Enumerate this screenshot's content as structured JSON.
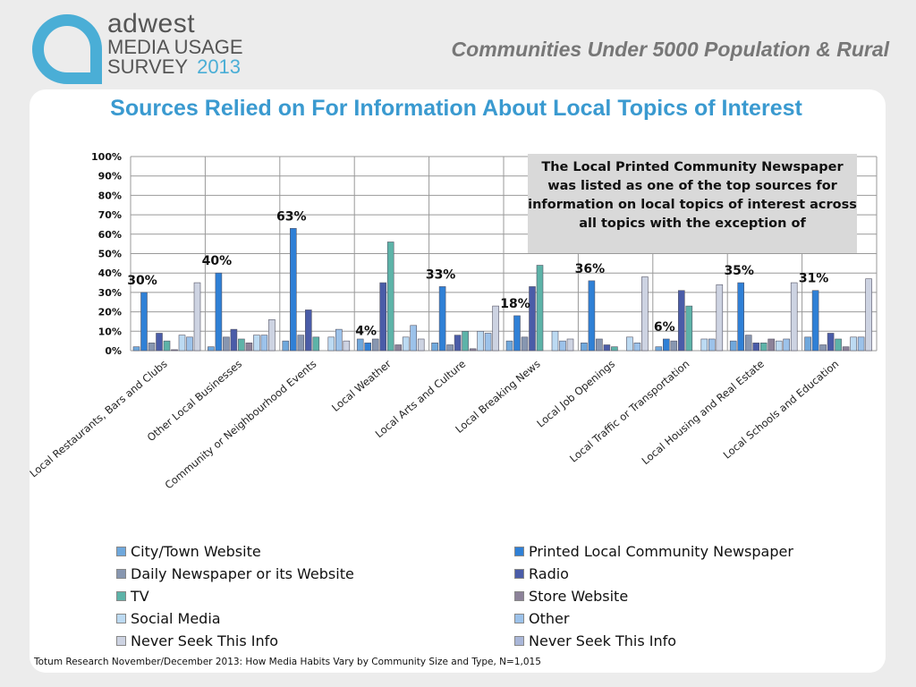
{
  "logo": {
    "brand": "adwest",
    "line1": "MEDIA USAGE",
    "line2": "SURVEY",
    "year": "2013"
  },
  "header_title": "Communities Under 5000 Population & Rural",
  "callout": "The Local Printed Community Newspaper was listed as one of the top sources for information on local topics of interest across all topics with the exception of",
  "footnote": "Totum Research November/December 2013: How Media Habits Vary by Community  Size and Type, N=1,015",
  "chart_data": {
    "type": "bar",
    "title": "Sources Relied on For Information About Local Topics of Interest",
    "xlabel": "",
    "ylabel": "",
    "ylim": [
      0,
      100
    ],
    "yticks": [
      "0%",
      "10%",
      "20%",
      "30%",
      "40%",
      "50%",
      "60%",
      "70%",
      "80%",
      "90%",
      "100%"
    ],
    "grid": true,
    "legend_placement": "bottom",
    "categories": [
      "Local Restaurants, Bars and Clubs",
      "Other Local Businesses",
      "Community or Neighbourhood Events",
      "Local Weather",
      "Local Arts and Culture",
      "Local Breaking News",
      "Local Job Openings",
      "Local Traffic or Transportation",
      "Local Housing and Real Estate",
      "Local Schools and Education"
    ],
    "series": [
      {
        "name": "City/Town Website",
        "color": "#6fa8dc",
        "values": [
          2,
          2,
          5,
          6,
          4,
          5,
          4,
          2,
          5,
          7
        ]
      },
      {
        "name": "Printed Local Community Newspaper",
        "color": "#2f80d6",
        "values": [
          30,
          40,
          63,
          4,
          33,
          18,
          36,
          6,
          35,
          31
        ]
      },
      {
        "name": "Daily Newspaper or its Website",
        "color": "#8796b0",
        "values": [
          4,
          7,
          8,
          6,
          3,
          7,
          6,
          5,
          8,
          3
        ]
      },
      {
        "name": "Radio",
        "color": "#4a5ca8",
        "values": [
          9,
          11,
          21,
          35,
          8,
          33,
          3,
          31,
          4,
          9
        ]
      },
      {
        "name": "TV",
        "color": "#5db3a8",
        "values": [
          5,
          6,
          7,
          56,
          10,
          44,
          2,
          23,
          4,
          6
        ]
      },
      {
        "name": "Store Website",
        "color": "#8c8299",
        "values": [
          0.5,
          4,
          0,
          3,
          1,
          0,
          0,
          0,
          6,
          2
        ]
      },
      {
        "name": "Social Media",
        "color": "#bcdaf2",
        "values": [
          8,
          8,
          7,
          7,
          10,
          10,
          7,
          6,
          5,
          7
        ]
      },
      {
        "name": "Other",
        "color": "#9cc2ea",
        "values": [
          7,
          8,
          11,
          13,
          9,
          5,
          4,
          6,
          6,
          7
        ]
      },
      {
        "name": "Never Seek This Info",
        "color": "#cdd3e2",
        "values": [
          35,
          16,
          5,
          6,
          23,
          6,
          38,
          34,
          35,
          37
        ]
      },
      {
        "name": "Never Seek This Info",
        "color": "#a9b6d8",
        "values": [
          0,
          0,
          0,
          0,
          0,
          0,
          0,
          0,
          0,
          0
        ]
      }
    ],
    "annotations": [
      "30%",
      "40%",
      "63%",
      "4%",
      "33%",
      "18%",
      "36%",
      "6%",
      "35%",
      "31%"
    ]
  }
}
